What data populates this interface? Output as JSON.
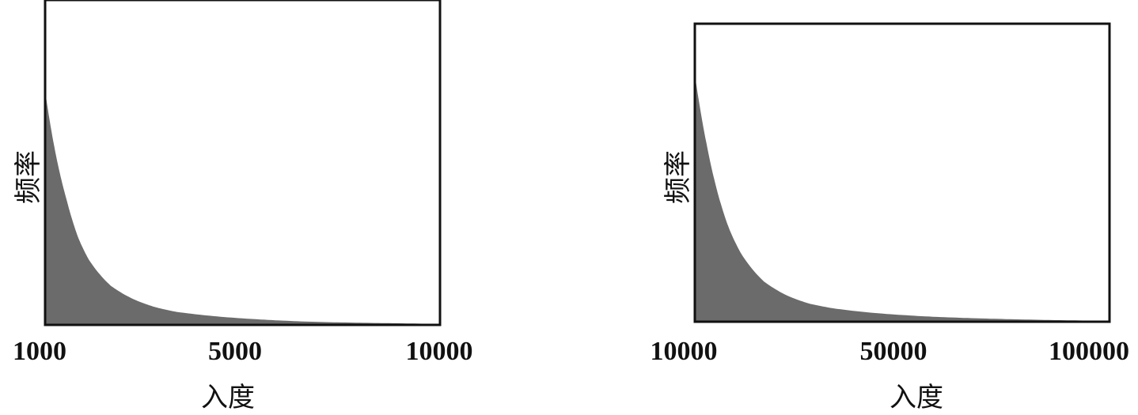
{
  "chart_data": [
    {
      "type": "area",
      "title": "",
      "xlabel": "入度",
      "ylabel": "频率",
      "x_ticks": [
        "1000",
        "5000",
        "10000"
      ],
      "xlim": [
        1000,
        10000
      ],
      "ylim": [
        0,
        1
      ],
      "grid": false,
      "legend": "none",
      "fill_color": "#6b6b6b",
      "frame_color": "#111111",
      "series": [
        {
          "x": [
            1000,
            1250,
            1500,
            1750,
            2000,
            2500,
            3000,
            3500,
            4000,
            5000,
            6000,
            7000,
            8000,
            9000,
            10000
          ],
          "values": [
            0.72,
            0.52,
            0.38,
            0.27,
            0.2,
            0.12,
            0.08,
            0.055,
            0.04,
            0.025,
            0.016,
            0.01,
            0.007,
            0.005,
            0.003
          ]
        }
      ]
    },
    {
      "type": "area",
      "title": "",
      "xlabel": "入度",
      "ylabel": "频率",
      "x_ticks": [
        "10000",
        "50000",
        "100000"
      ],
      "xlim": [
        10000,
        100000
      ],
      "ylim": [
        0,
        1
      ],
      "grid": false,
      "legend": "none",
      "fill_color": "#6b6b6b",
      "frame_color": "#111111",
      "series": [
        {
          "x": [
            10000,
            12500,
            15000,
            17500,
            20000,
            25000,
            30000,
            35000,
            40000,
            50000,
            60000,
            70000,
            80000,
            90000,
            100000
          ],
          "values": [
            0.83,
            0.6,
            0.43,
            0.31,
            0.23,
            0.135,
            0.088,
            0.06,
            0.045,
            0.028,
            0.018,
            0.012,
            0.008,
            0.005,
            0.003
          ]
        }
      ]
    }
  ]
}
